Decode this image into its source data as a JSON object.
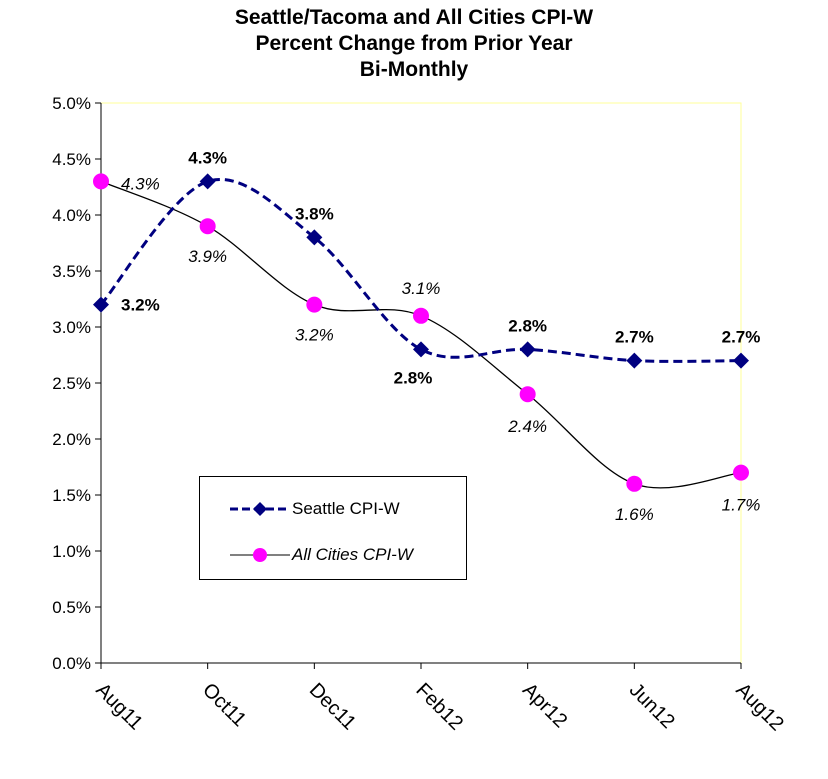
{
  "chart_data": {
    "type": "line",
    "title_lines": [
      "Seattle/Tacoma and All Cities CPI-W",
      "Percent Change from Prior Year",
      "Bi-Monthly"
    ],
    "categories": [
      "Aug11",
      "Oct11",
      "Dec11",
      "Feb12",
      "Apr12",
      "Jun12",
      "Aug12"
    ],
    "ylim": [
      0,
      5.0
    ],
    "yticks": [
      "0.0%",
      "0.5%",
      "1.0%",
      "1.5%",
      "2.0%",
      "2.5%",
      "3.0%",
      "3.5%",
      "4.0%",
      "4.5%",
      "5.0%"
    ],
    "grid": false,
    "legend_position": "bottom-left",
    "series": [
      {
        "name": "Seattle CPI-W",
        "values": [
          3.2,
          4.3,
          3.8,
          2.8,
          2.8,
          2.7,
          2.7
        ],
        "labels": [
          "3.2%",
          "4.3%",
          "3.8%",
          "2.8%",
          "2.8%",
          "2.7%",
          "2.7%"
        ],
        "color": "#000080",
        "marker": "diamond",
        "line_style": "dashed"
      },
      {
        "name": "All Cities CPI-W",
        "values": [
          4.3,
          3.9,
          3.2,
          3.1,
          2.4,
          1.6,
          1.7
        ],
        "labels": [
          "4.3%",
          "3.9%",
          "3.2%",
          "3.1%",
          "2.4%",
          "1.6%",
          "1.7%"
        ],
        "color": "#ff00ff",
        "marker": "circle",
        "line_style": "solid"
      }
    ]
  }
}
